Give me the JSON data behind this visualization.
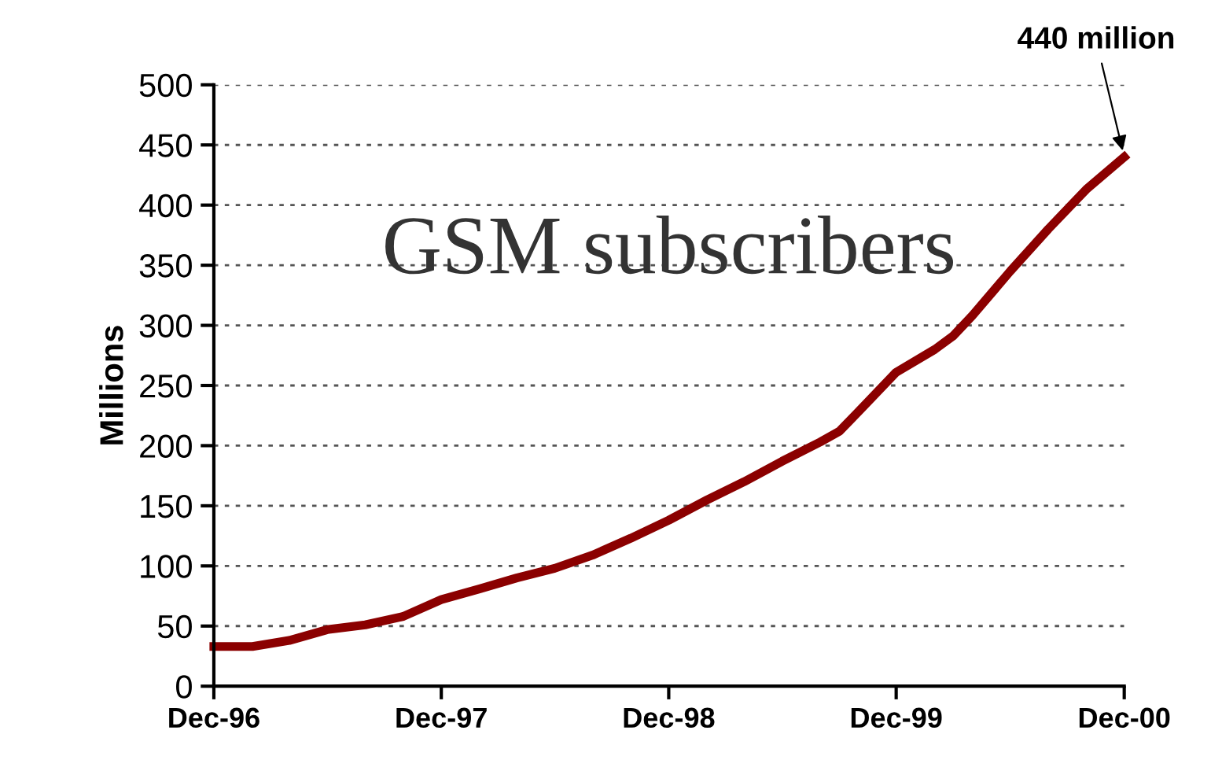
{
  "chart_data": {
    "type": "line",
    "title": "GSM subscribers",
    "ylabel": "Millions",
    "x": [
      "1996-12",
      "1997-02",
      "1997-04",
      "1997-06",
      "1997-08",
      "1997-10",
      "1997-12",
      "1998-02",
      "1998-04",
      "1998-06",
      "1998-08",
      "1998-10",
      "1998-12",
      "1999-02",
      "1999-04",
      "1999-06",
      "1999-08",
      "1999-09",
      "1999-10",
      "1999-12",
      "2000-02",
      "2000-03",
      "2000-04",
      "2000-06",
      "2000-08",
      "2000-10",
      "2000-12"
    ],
    "series": [
      {
        "color": "#8b0000",
        "values": [
          33,
          33,
          38,
          47,
          51,
          58,
          72,
          81,
          90,
          98,
          109,
          123,
          138,
          155,
          170,
          187,
          203,
          212,
          228,
          261,
          280,
          291,
          308,
          345,
          380,
          413,
          440
        ]
      }
    ],
    "annotations": [
      {
        "text": "440 million",
        "x": "2000-12",
        "y": 440
      }
    ],
    "xlim": [
      "1996-12",
      "2000-12"
    ],
    "xticks": [
      {
        "value": "1996-12",
        "label": "Dec-96"
      },
      {
        "value": "1997-12",
        "label": "Dec-97"
      },
      {
        "value": "1998-12",
        "label": "Dec-98"
      },
      {
        "value": "1999-12",
        "label": "Dec-99"
      },
      {
        "value": "2000-12",
        "label": "Dec-00"
      }
    ],
    "ylim": [
      0,
      500
    ],
    "yticks": [
      0,
      50,
      100,
      150,
      200,
      250,
      300,
      350,
      400,
      450,
      500
    ],
    "grid": "y",
    "line_style": "solid",
    "marker": "none"
  }
}
